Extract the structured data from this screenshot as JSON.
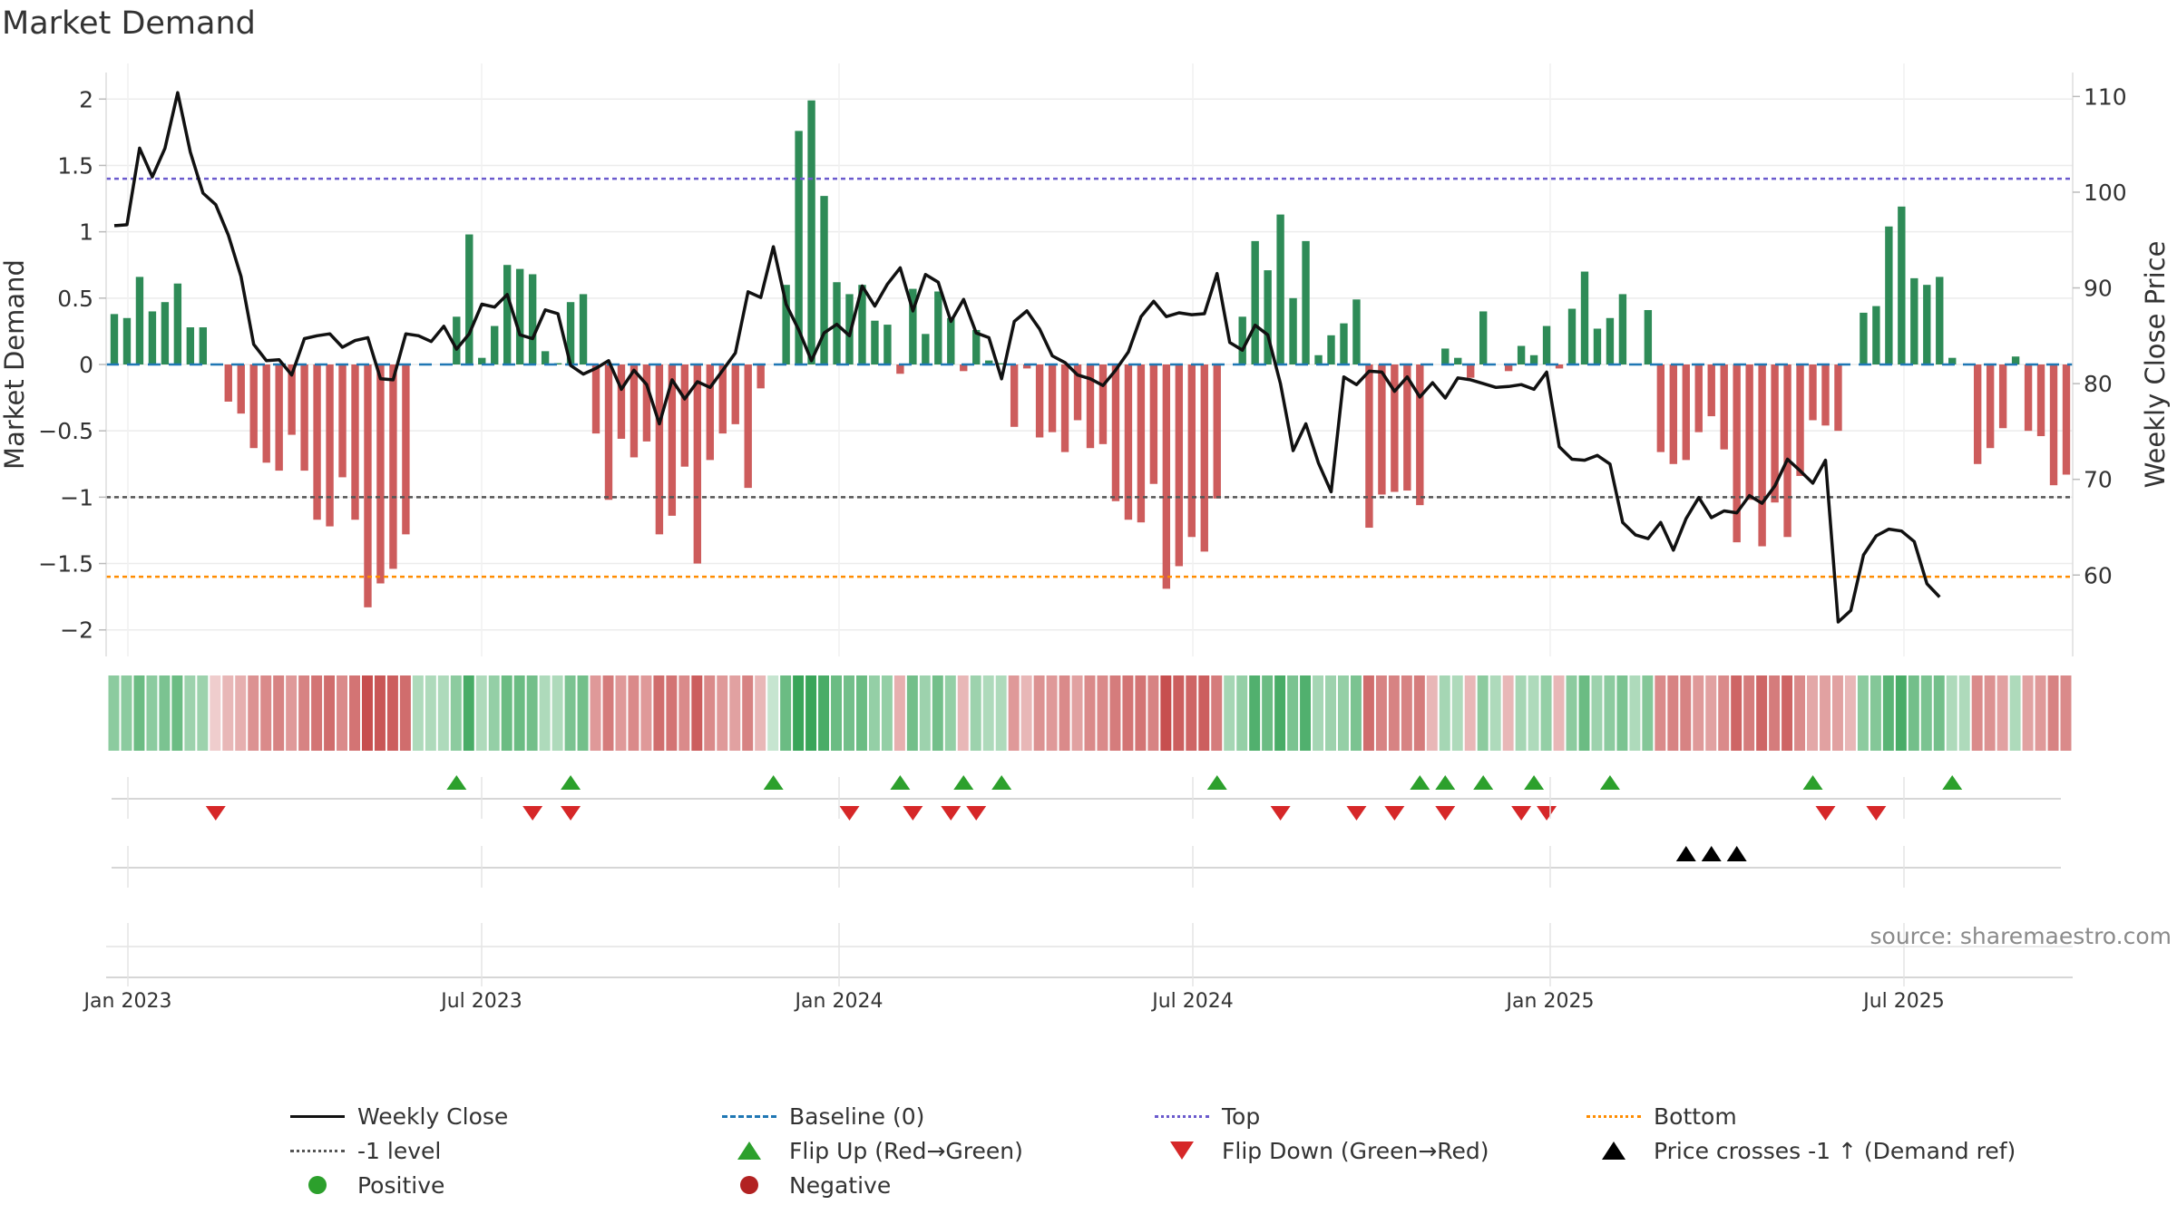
{
  "title": "Market Demand",
  "source": "source: sharemaestro.com",
  "colors": {
    "pos_bar": "#2e8b57",
    "neg_bar": "#cd5c5c",
    "close": "#111111",
    "baseline": "#1f77b4",
    "top": "#6a5acd",
    "minus1": "#555555",
    "bottom": "#ff8c00",
    "flip_up": "#2ca02c",
    "flip_down": "#d62728",
    "cross": "#000000",
    "positive": "#2ca02c",
    "negative": "#b22222"
  },
  "chart_data": {
    "type": "bar+line",
    "x_ticks": [
      "Jan 2023",
      "Jul 2023",
      "Jan 2024",
      "Jul 2024",
      "Jan 2025",
      "Jul 2025"
    ],
    "left_axis": {
      "label": "Market Demand",
      "ticks": [
        "2",
        "1.5",
        "1",
        "0.5",
        "0",
        "−0.5",
        "−1",
        "−1.5",
        "−2"
      ],
      "range": [
        -2.2,
        2.2
      ]
    },
    "right_axis": {
      "label": "Weekly Close Price",
      "ticks": [
        "110",
        "100",
        "90",
        "80",
        "70",
        "60"
      ],
      "range": [
        51.5,
        112.5
      ]
    },
    "reference_lines": {
      "baseline": 0,
      "top": 1.4,
      "minus1": -1,
      "bottom": -1.6
    },
    "demand": [
      0.38,
      0.35,
      0.66,
      0.4,
      0.47,
      0.61,
      0.28,
      0.28,
      0,
      -0.28,
      -0.37,
      -0.63,
      -0.74,
      -0.8,
      -0.53,
      -0.8,
      -1.17,
      -1.22,
      -0.85,
      -1.17,
      -1.83,
      -1.65,
      -1.54,
      -1.28,
      0,
      0,
      0,
      0.36,
      0.98,
      0.05,
      0.29,
      0.75,
      0.72,
      0.68,
      0.1,
      0.01,
      0.47,
      0.53,
      -0.52,
      -1.02,
      -0.56,
      -0.7,
      -0.58,
      -1.28,
      -1.14,
      -0.77,
      -1.5,
      -0.72,
      -0.52,
      -0.45,
      -0.93,
      -0.18,
      0,
      0.6,
      1.76,
      1.99,
      1.27,
      0.62,
      0.53,
      0.6,
      0.33,
      0.3,
      -0.07,
      0.57,
      0.23,
      0.55,
      0.35,
      -0.05,
      0.26,
      0.03,
      0.01,
      -0.47,
      -0.03,
      -0.55,
      -0.51,
      -0.66,
      -0.42,
      -0.63,
      -0.6,
      -1.03,
      -1.17,
      -1.19,
      -0.9,
      -1.69,
      -1.52,
      -1.3,
      -1.41,
      -1.01,
      0,
      0.36,
      0.93,
      0.71,
      1.13,
      0.5,
      0.93,
      0.07,
      0.22,
      0.31,
      0.49,
      -1.23,
      -0.98,
      -0.96,
      -0.95,
      -1.06,
      0,
      0.12,
      0.05,
      -0.1,
      0.4,
      0,
      -0.05,
      0.14,
      0.07,
      0.29,
      -0.03,
      0.42,
      0.7,
      0.27,
      0.35,
      0.53,
      0,
      0.41,
      -0.66,
      -0.75,
      -0.72,
      -0.51,
      -0.39,
      -0.64,
      -1.34,
      -1.02,
      -1.37,
      -1.04,
      -1.3,
      -0.84,
      -0.42,
      -0.46,
      -0.5,
      0,
      0.39,
      0.44,
      1.04,
      1.19,
      0.65,
      0.6,
      0.66,
      0.05,
      0,
      -0.75,
      -0.63,
      -0.48,
      0.06,
      -0.5,
      -0.54,
      -0.91,
      -0.83
    ],
    "close": [
      96.5,
      96.6,
      104.6,
      101.6,
      104.6,
      110.4,
      104.2,
      99.9,
      98.7,
      95.5,
      91.2,
      84.1,
      82.4,
      82.5,
      80.9,
      84.7,
      85.0,
      85.2,
      83.8,
      84.5,
      84.8,
      80.5,
      80.4,
      85.2,
      85.0,
      84.4,
      86.0,
      83.6,
      85.2,
      88.3,
      88.0,
      89.3,
      85.1,
      84.7,
      87.7,
      87.3,
      81.9,
      81.0,
      81.6,
      82.4,
      79.4,
      81.4,
      79.9,
      75.8,
      80.4,
      78.4,
      80.2,
      79.6,
      81.4,
      83.2,
      89.6,
      89.0,
      94.3,
      88.3,
      85.6,
      82.4,
      85.3,
      86.2,
      85.0,
      90.2,
      88.1,
      90.4,
      92.1,
      87.6,
      91.4,
      90.6,
      86.5,
      88.8,
      85.3,
      84.8,
      80.5,
      86.5,
      87.6,
      85.7,
      82.9,
      82.2,
      80.9,
      80.5,
      79.8,
      81.4,
      83.3,
      87.0,
      88.6,
      87.0,
      87.4,
      87.2,
      87.3,
      91.5,
      84.3,
      83.5,
      86.1,
      85.1,
      80.0,
      73.0,
      75.8,
      71.7,
      68.7,
      80.7,
      79.9,
      81.3,
      81.2,
      79.2,
      80.7,
      78.6,
      80.1,
      78.5,
      80.6,
      80.4,
      80.0,
      79.6,
      79.7,
      79.9,
      79.4,
      81.2,
      73.4,
      72.1,
      72.0,
      72.5,
      71.6,
      65.5,
      64.2,
      63.8,
      65.5,
      62.6,
      65.9,
      68.1,
      66.0,
      66.7,
      66.5,
      68.3,
      67.5,
      69.3,
      72.1,
      70.9,
      69.6,
      72.0,
      55.1,
      56.3,
      62.1,
      64.1,
      64.8,
      64.6,
      63.5,
      59.1,
      57.7
    ],
    "color_strip": [
      0.5,
      0.5,
      0.7,
      0.5,
      0.6,
      0.7,
      0.4,
      0.4,
      0.15,
      0.3,
      0.35,
      0.55,
      0.6,
      0.65,
      0.5,
      0.65,
      0.75,
      0.8,
      0.6,
      0.75,
      1,
      0.95,
      0.9,
      0.8,
      0.3,
      0.3,
      0.3,
      0.5,
      0.9,
      0.3,
      0.45,
      0.7,
      0.7,
      0.65,
      0.3,
      0.3,
      0.6,
      0.65,
      0.5,
      0.7,
      0.5,
      0.6,
      0.5,
      0.8,
      0.75,
      0.6,
      0.9,
      0.6,
      0.5,
      0.45,
      0.65,
      0.3,
      0.15,
      0.7,
      1,
      1,
      0.9,
      0.7,
      0.65,
      0.7,
      0.45,
      0.45,
      0.35,
      0.65,
      0.4,
      0.65,
      0.45,
      0.3,
      0.4,
      0.3,
      0.3,
      0.5,
      0.3,
      0.55,
      0.5,
      0.6,
      0.45,
      0.6,
      0.6,
      0.7,
      0.75,
      0.75,
      0.65,
      1,
      0.9,
      0.85,
      0.9,
      0.7,
      0.35,
      0.45,
      0.85,
      0.7,
      0.9,
      0.6,
      0.85,
      0.35,
      0.4,
      0.45,
      0.6,
      0.8,
      0.65,
      0.65,
      0.65,
      0.7,
      0.3,
      0.35,
      0.3,
      0.3,
      0.5,
      0.3,
      0.3,
      0.35,
      0.3,
      0.45,
      0.3,
      0.5,
      0.7,
      0.4,
      0.5,
      0.6,
      0.3,
      0.55,
      0.6,
      0.65,
      0.65,
      0.5,
      0.45,
      0.6,
      0.85,
      0.7,
      0.85,
      0.7,
      0.85,
      0.6,
      0.4,
      0.45,
      0.45,
      0.3,
      0.5,
      0.55,
      0.8,
      0.9,
      0.65,
      0.6,
      0.65,
      0.3,
      0.3,
      0.6,
      0.55,
      0.45,
      0.3,
      0.45,
      0.5,
      0.65,
      0.6
    ],
    "flip_up_weeks": [
      27,
      36,
      52,
      62,
      67,
      70,
      87,
      103,
      105,
      108,
      112,
      118,
      134,
      145
    ],
    "flip_down_weeks": [
      8,
      33,
      36,
      58,
      63,
      66,
      68,
      92,
      98,
      101,
      105,
      111,
      113,
      135,
      139
    ],
    "cross_weeks": [
      124,
      126,
      128
    ],
    "legend": [
      {
        "label": "Weekly Close",
        "key": "solid-line",
        "color": "#111111"
      },
      {
        "label": "Baseline (0)",
        "key": "dashed-line",
        "color": "#1f77b4"
      },
      {
        "label": "Top",
        "key": "dotted-line",
        "color": "#6a5acd"
      },
      {
        "label": "Bottom",
        "key": "dotted-line",
        "color": "#ff8c00"
      },
      {
        "label": "-1 level",
        "key": "dotted-line",
        "color": "#555555"
      },
      {
        "label": "Flip Up (Red→Green)",
        "key": "triangle-up",
        "color": "#2ca02c"
      },
      {
        "label": "Flip Down (Green→Red)",
        "key": "triangle-down",
        "color": "#d62728"
      },
      {
        "label": "Price crosses -1 ↑ (Demand ref)",
        "key": "triangle-up",
        "color": "#000000"
      },
      {
        "label": "Positive",
        "key": "dot",
        "color": "#2ca02c"
      },
      {
        "label": "Negative",
        "key": "dot",
        "color": "#b22222"
      }
    ]
  }
}
